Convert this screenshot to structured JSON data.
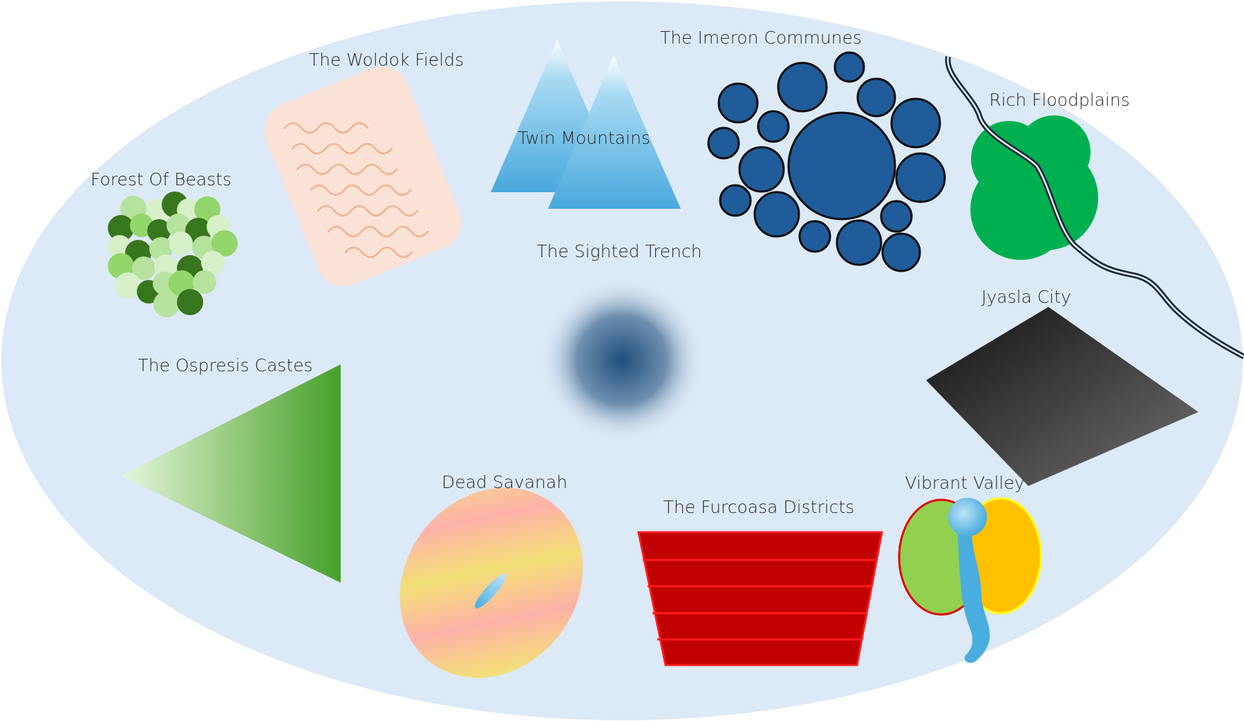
{
  "map": {
    "colors": {
      "land": "#dce9f6",
      "forest_dark": "#38761d",
      "forest_light": "#93d66b",
      "fields": "#fbe2d6",
      "fields_lines": "#f0b28f",
      "mountains": "#4aa9dd",
      "communes": "#1f5c99",
      "floodplains": "#00b050",
      "river": "#1a2a3a",
      "trench": "#1f4e79",
      "city": "#2a2a2a",
      "castes": "#4aa32f",
      "savanah_pink": "#fdb2a8",
      "savanah_yellow": "#f3e078",
      "districts": "#c00000",
      "valley_green": "#92d050",
      "valley_yellow": "#ffc000",
      "valley_river": "#4aaddf"
    },
    "regions": {
      "forest": {
        "label": "Forest Of Beasts"
      },
      "woldok": {
        "label": "The Woldok Fields"
      },
      "twin": {
        "label": "Twin Mountains"
      },
      "imeron": {
        "label": "The Imeron Communes"
      },
      "flood": {
        "label": "Rich Floodplains"
      },
      "trench": {
        "label": "The Sighted Trench"
      },
      "jyasla": {
        "label": "Jyasla City"
      },
      "ospresis": {
        "label": "The Ospresis Castes"
      },
      "savanah": {
        "label": "Dead Savanah"
      },
      "furcoasa": {
        "label": "The Furcoasa Districts"
      },
      "valley": {
        "label": "Vibrant Valley"
      }
    }
  }
}
